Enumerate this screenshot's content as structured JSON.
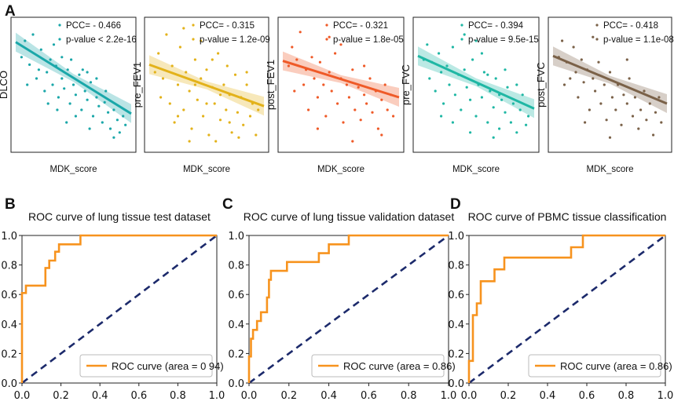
{
  "panel_labels": {
    "a": "A",
    "b": "B",
    "c": "C",
    "d": "D"
  },
  "chart_data": [
    {
      "type": "scatter",
      "panel": "A",
      "xlabel": "MDK_score",
      "ylabel": "DLCO",
      "pcc_label": "PCC= - 0.466",
      "p_label": "p-value < 2.2e-16",
      "color": "#1aa7a9",
      "trend": {
        "y_start": 0.84,
        "y_end": 0.27
      },
      "points": [
        [
          0.05,
          0.72
        ],
        [
          0.08,
          0.85
        ],
        [
          0.1,
          0.5
        ],
        [
          0.12,
          0.66
        ],
        [
          0.15,
          0.9
        ],
        [
          0.18,
          0.55
        ],
        [
          0.2,
          0.62
        ],
        [
          0.22,
          0.78
        ],
        [
          0.25,
          0.45
        ],
        [
          0.27,
          0.6
        ],
        [
          0.3,
          0.7
        ],
        [
          0.32,
          0.5
        ],
        [
          0.35,
          0.65
        ],
        [
          0.37,
          0.4
        ],
        [
          0.4,
          0.55
        ],
        [
          0.42,
          0.47
        ],
        [
          0.45,
          0.62
        ],
        [
          0.47,
          0.35
        ],
        [
          0.5,
          0.5
        ],
        [
          0.52,
          0.42
        ],
        [
          0.55,
          0.58
        ],
        [
          0.57,
          0.3
        ],
        [
          0.6,
          0.45
        ],
        [
          0.62,
          0.38
        ],
        [
          0.65,
          0.52
        ],
        [
          0.67,
          0.25
        ],
        [
          0.7,
          0.4
        ],
        [
          0.72,
          0.33
        ],
        [
          0.75,
          0.2
        ],
        [
          0.77,
          0.36
        ],
        [
          0.8,
          0.28
        ],
        [
          0.82,
          0.15
        ],
        [
          0.85,
          0.3
        ],
        [
          0.88,
          0.22
        ],
        [
          0.9,
          0.12
        ],
        [
          0.93,
          0.25
        ],
        [
          0.95,
          0.18
        ],
        [
          0.36,
          0.3
        ],
        [
          0.44,
          0.2
        ],
        [
          0.58,
          0.62
        ],
        [
          0.64,
          0.15
        ],
        [
          0.28,
          0.35
        ],
        [
          0.48,
          0.7
        ],
        [
          0.7,
          0.55
        ],
        [
          0.78,
          0.45
        ],
        [
          0.85,
          0.08
        ],
        [
          0.52,
          0.25
        ],
        [
          0.62,
          0.6
        ],
        [
          0.33,
          0.82
        ],
        [
          0.4,
          0.72
        ]
      ]
    },
    {
      "type": "scatter",
      "panel": "A",
      "xlabel": "MDK_score",
      "ylabel": "pre_FEV1",
      "pcc_label": "PCC= - 0.315",
      "p_label": "p-value = 1.2e-09",
      "color": "#e3b21a",
      "trend": {
        "y_start": 0.66,
        "y_end": 0.33
      },
      "points": [
        [
          0.05,
          0.6
        ],
        [
          0.08,
          0.75
        ],
        [
          0.1,
          0.4
        ],
        [
          0.12,
          0.55
        ],
        [
          0.15,
          0.9
        ],
        [
          0.18,
          0.35
        ],
        [
          0.2,
          0.65
        ],
        [
          0.22,
          0.2
        ],
        [
          0.25,
          0.5
        ],
        [
          0.27,
          0.8
        ],
        [
          0.3,
          0.3
        ],
        [
          0.32,
          0.6
        ],
        [
          0.35,
          0.45
        ],
        [
          0.37,
          0.15
        ],
        [
          0.4,
          0.7
        ],
        [
          0.42,
          0.38
        ],
        [
          0.45,
          0.55
        ],
        [
          0.47,
          0.25
        ],
        [
          0.5,
          0.62
        ],
        [
          0.52,
          0.1
        ],
        [
          0.55,
          0.48
        ],
        [
          0.57,
          0.35
        ],
        [
          0.6,
          0.75
        ],
        [
          0.62,
          0.22
        ],
        [
          0.65,
          0.5
        ],
        [
          0.67,
          0.3
        ],
        [
          0.7,
          0.42
        ],
        [
          0.72,
          0.12
        ],
        [
          0.75,
          0.58
        ],
        [
          0.77,
          0.28
        ],
        [
          0.8,
          0.4
        ],
        [
          0.82,
          0.18
        ],
        [
          0.85,
          0.5
        ],
        [
          0.88,
          0.25
        ],
        [
          0.9,
          0.35
        ],
        [
          0.93,
          0.1
        ],
        [
          0.95,
          0.3
        ],
        [
          0.3,
          0.95
        ],
        [
          0.45,
          0.85
        ],
        [
          0.58,
          0.05
        ],
        [
          0.68,
          0.65
        ],
        [
          0.35,
          0.05
        ],
        [
          0.55,
          0.7
        ],
        [
          0.78,
          0.08
        ],
        [
          0.62,
          0.42
        ],
        [
          0.25,
          0.25
        ],
        [
          0.4,
          0.5
        ],
        [
          0.85,
          0.6
        ],
        [
          0.5,
          0.35
        ],
        [
          0.7,
          0.2
        ]
      ]
    },
    {
      "type": "scatter",
      "panel": "A",
      "xlabel": "MDK_score",
      "ylabel": "post_FEV1",
      "pcc_label": "PCC= - 0.321",
      "p_label": "p-value = 1.8e-05",
      "color": "#ef5a28",
      "trend": {
        "y_start": 0.69,
        "y_end": 0.4
      },
      "points": [
        [
          0.05,
          0.65
        ],
        [
          0.08,
          0.8
        ],
        [
          0.1,
          0.45
        ],
        [
          0.12,
          0.7
        ],
        [
          0.15,
          0.92
        ],
        [
          0.18,
          0.5
        ],
        [
          0.2,
          0.62
        ],
        [
          0.22,
          0.3
        ],
        [
          0.25,
          0.72
        ],
        [
          0.27,
          0.55
        ],
        [
          0.3,
          0.4
        ],
        [
          0.32,
          0.68
        ],
        [
          0.35,
          0.5
        ],
        [
          0.37,
          0.25
        ],
        [
          0.4,
          0.6
        ],
        [
          0.42,
          0.45
        ],
        [
          0.45,
          0.75
        ],
        [
          0.47,
          0.35
        ],
        [
          0.5,
          0.55
        ],
        [
          0.52,
          0.2
        ],
        [
          0.55,
          0.5
        ],
        [
          0.57,
          0.4
        ],
        [
          0.6,
          0.62
        ],
        [
          0.62,
          0.3
        ],
        [
          0.65,
          0.48
        ],
        [
          0.67,
          0.22
        ],
        [
          0.7,
          0.42
        ],
        [
          0.72,
          0.35
        ],
        [
          0.75,
          0.55
        ],
        [
          0.77,
          0.28
        ],
        [
          0.8,
          0.45
        ],
        [
          0.82,
          0.15
        ],
        [
          0.85,
          0.38
        ],
        [
          0.88,
          0.5
        ],
        [
          0.9,
          0.3
        ],
        [
          0.93,
          0.42
        ],
        [
          0.95,
          0.25
        ],
        [
          0.4,
          0.88
        ],
        [
          0.6,
          0.05
        ],
        [
          0.3,
          0.15
        ],
        [
          0.5,
          0.82
        ],
        [
          0.7,
          0.65
        ],
        [
          0.85,
          0.1
        ]
      ]
    },
    {
      "type": "scatter",
      "panel": "A",
      "xlabel": "MDK_score",
      "ylabel": "pre_FVC",
      "pcc_label": "PCC= - 0.394",
      "p_label": "p-value = 9.5e-15",
      "color": "#1fb7a4",
      "trend": {
        "y_start": 0.73,
        "y_end": 0.31
      },
      "points": [
        [
          0.05,
          0.7
        ],
        [
          0.08,
          0.82
        ],
        [
          0.1,
          0.55
        ],
        [
          0.12,
          0.68
        ],
        [
          0.15,
          0.45
        ],
        [
          0.18,
          0.75
        ],
        [
          0.2,
          0.6
        ],
        [
          0.22,
          0.35
        ],
        [
          0.25,
          0.65
        ],
        [
          0.27,
          0.5
        ],
        [
          0.3,
          0.8
        ],
        [
          0.32,
          0.42
        ],
        [
          0.35,
          0.58
        ],
        [
          0.37,
          0.3
        ],
        [
          0.4,
          0.62
        ],
        [
          0.42,
          0.48
        ],
        [
          0.45,
          0.38
        ],
        [
          0.47,
          0.7
        ],
        [
          0.5,
          0.25
        ],
        [
          0.52,
          0.5
        ],
        [
          0.55,
          0.4
        ],
        [
          0.57,
          0.6
        ],
        [
          0.6,
          0.2
        ],
        [
          0.62,
          0.45
        ],
        [
          0.65,
          0.32
        ],
        [
          0.67,
          0.55
        ],
        [
          0.7,
          0.15
        ],
        [
          0.72,
          0.38
        ],
        [
          0.75,
          0.28
        ],
        [
          0.77,
          0.48
        ],
        [
          0.8,
          0.2
        ],
        [
          0.82,
          0.35
        ],
        [
          0.85,
          0.12
        ],
        [
          0.88,
          0.3
        ],
        [
          0.9,
          0.42
        ],
        [
          0.93,
          0.18
        ],
        [
          0.95,
          0.25
        ],
        [
          0.4,
          0.9
        ],
        [
          0.3,
          0.2
        ],
        [
          0.55,
          0.75
        ],
        [
          0.65,
          0.08
        ],
        [
          0.75,
          0.62
        ],
        [
          0.45,
          0.12
        ],
        [
          0.85,
          0.5
        ],
        [
          0.2,
          0.25
        ],
        [
          0.6,
          0.58
        ],
        [
          0.5,
          0.85
        ],
        [
          0.7,
          0.42
        ]
      ]
    },
    {
      "type": "scatter",
      "panel": "A",
      "xlabel": "MDK_score",
      "ylabel": "post_FVC",
      "pcc_label": "PCC= - 0.418",
      "p_label": "p-value = 1.1e-08",
      "color": "#7a6148",
      "trend": {
        "y_start": 0.73,
        "y_end": 0.35
      },
      "points": [
        [
          0.05,
          0.72
        ],
        [
          0.08,
          0.85
        ],
        [
          0.1,
          0.5
        ],
        [
          0.12,
          0.68
        ],
        [
          0.15,
          0.55
        ],
        [
          0.18,
          0.8
        ],
        [
          0.2,
          0.6
        ],
        [
          0.22,
          0.4
        ],
        [
          0.25,
          0.7
        ],
        [
          0.27,
          0.52
        ],
        [
          0.3,
          0.62
        ],
        [
          0.32,
          0.3
        ],
        [
          0.35,
          0.55
        ],
        [
          0.37,
          0.45
        ],
        [
          0.4,
          0.68
        ],
        [
          0.42,
          0.35
        ],
        [
          0.45,
          0.5
        ],
        [
          0.47,
          0.22
        ],
        [
          0.5,
          0.6
        ],
        [
          0.52,
          0.4
        ],
        [
          0.55,
          0.3
        ],
        [
          0.57,
          0.5
        ],
        [
          0.6,
          0.18
        ],
        [
          0.62,
          0.42
        ],
        [
          0.65,
          0.35
        ],
        [
          0.67,
          0.55
        ],
        [
          0.7,
          0.25
        ],
        [
          0.72,
          0.4
        ],
        [
          0.75,
          0.15
        ],
        [
          0.77,
          0.3
        ],
        [
          0.8,
          0.45
        ],
        [
          0.82,
          0.22
        ],
        [
          0.85,
          0.35
        ],
        [
          0.88,
          0.1
        ],
        [
          0.9,
          0.28
        ],
        [
          0.93,
          0.4
        ],
        [
          0.95,
          0.2
        ],
        [
          0.35,
          0.88
        ],
        [
          0.5,
          0.08
        ],
        [
          0.65,
          0.7
        ],
        [
          0.28,
          0.2
        ]
      ]
    },
    {
      "type": "line",
      "panel": "B",
      "title": "ROC curve of lung tissue test dataset",
      "legend": "ROC curve (area = 0 94)",
      "xlim": [
        0,
        1
      ],
      "ylim": [
        0,
        1
      ],
      "xticks": [
        "0.0",
        "0.2",
        "0.4",
        "0.6",
        "0.8",
        "1.0"
      ],
      "yticks": [
        "0.0",
        "0.2",
        "0.4",
        "0.6",
        "0.8",
        "1.0"
      ],
      "roc": [
        [
          0,
          0
        ],
        [
          0,
          0.61
        ],
        [
          0.02,
          0.61
        ],
        [
          0.02,
          0.66
        ],
        [
          0.12,
          0.66
        ],
        [
          0.12,
          0.78
        ],
        [
          0.14,
          0.78
        ],
        [
          0.14,
          0.83
        ],
        [
          0.17,
          0.83
        ],
        [
          0.17,
          0.89
        ],
        [
          0.19,
          0.89
        ],
        [
          0.19,
          0.94
        ],
        [
          0.3,
          0.94
        ],
        [
          0.3,
          1
        ],
        [
          1,
          1
        ]
      ]
    },
    {
      "type": "line",
      "panel": "C",
      "title": "ROC curve of lung tissue validation dataset",
      "legend": "ROC curve (area = 0.86)",
      "xlim": [
        0,
        1
      ],
      "ylim": [
        0,
        1
      ],
      "xticks": [
        "0.0",
        "0.2",
        "0.4",
        "0.6",
        "0.8",
        "1.0"
      ],
      "yticks": [
        "0.0",
        "0.2",
        "0.4",
        "0.6",
        "0.8",
        "1.0"
      ],
      "roc": [
        [
          0,
          0
        ],
        [
          0,
          0.18
        ],
        [
          0.01,
          0.18
        ],
        [
          0.01,
          0.3
        ],
        [
          0.02,
          0.3
        ],
        [
          0.02,
          0.36
        ],
        [
          0.04,
          0.36
        ],
        [
          0.04,
          0.42
        ],
        [
          0.06,
          0.42
        ],
        [
          0.06,
          0.48
        ],
        [
          0.09,
          0.48
        ],
        [
          0.09,
          0.58
        ],
        [
          0.1,
          0.58
        ],
        [
          0.1,
          0.7
        ],
        [
          0.11,
          0.7
        ],
        [
          0.11,
          0.76
        ],
        [
          0.19,
          0.76
        ],
        [
          0.19,
          0.82
        ],
        [
          0.35,
          0.82
        ],
        [
          0.35,
          0.88
        ],
        [
          0.4,
          0.88
        ],
        [
          0.4,
          0.94
        ],
        [
          0.5,
          0.94
        ],
        [
          0.5,
          1
        ],
        [
          1,
          1
        ]
      ]
    },
    {
      "type": "line",
      "panel": "D",
      "title": "ROC curve of PBMC tissue classification",
      "legend": "ROC curve (area = 0.86)",
      "xlim": [
        0,
        1
      ],
      "ylim": [
        0,
        1
      ],
      "xticks": [
        "0.0",
        "0.2",
        "0.4",
        "0.6",
        "0.8",
        "1.0"
      ],
      "yticks": [
        "0.0",
        "0.2",
        "0.4",
        "0.6",
        "0.8",
        "1.0"
      ],
      "roc": [
        [
          0,
          0
        ],
        [
          0,
          0.15
        ],
        [
          0.02,
          0.15
        ],
        [
          0.02,
          0.46
        ],
        [
          0.04,
          0.46
        ],
        [
          0.04,
          0.54
        ],
        [
          0.06,
          0.54
        ],
        [
          0.06,
          0.69
        ],
        [
          0.13,
          0.69
        ],
        [
          0.13,
          0.77
        ],
        [
          0.18,
          0.77
        ],
        [
          0.18,
          0.85
        ],
        [
          0.52,
          0.85
        ],
        [
          0.52,
          0.92
        ],
        [
          0.58,
          0.92
        ],
        [
          0.58,
          1
        ],
        [
          1,
          1
        ]
      ]
    }
  ]
}
